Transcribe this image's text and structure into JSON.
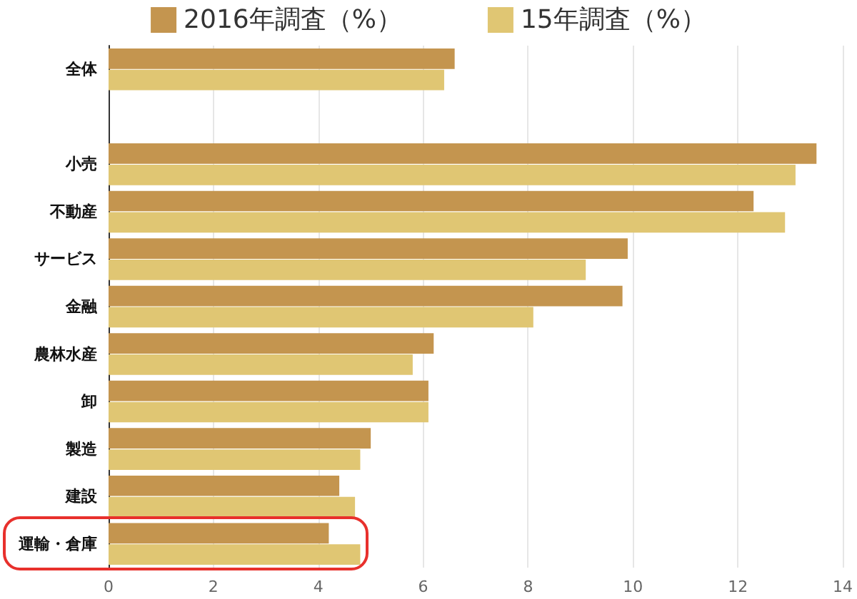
{
  "chart_data": {
    "type": "bar",
    "orientation": "horizontal",
    "categories": [
      "全体",
      null,
      "小売",
      "不動産",
      "サービス",
      "金融",
      "農林水産",
      "卸",
      "製造",
      "建設",
      "運輸・倉庫"
    ],
    "series": [
      {
        "name": "2016年調査（%）",
        "color": "#c4954f",
        "values": [
          6.6,
          null,
          13.5,
          12.3,
          9.9,
          9.8,
          6.2,
          6.1,
          5.0,
          4.4,
          4.2
        ]
      },
      {
        "name": "15年調査（%）",
        "color": "#e0c673",
        "values": [
          6.4,
          null,
          13.1,
          12.9,
          9.1,
          8.1,
          5.8,
          6.1,
          4.8,
          4.7,
          4.8
        ]
      }
    ],
    "xlim": [
      0,
      14
    ],
    "xticks": [
      0,
      2,
      4,
      6,
      8,
      10,
      12,
      14
    ],
    "grid": "x",
    "legend": "top"
  }
}
